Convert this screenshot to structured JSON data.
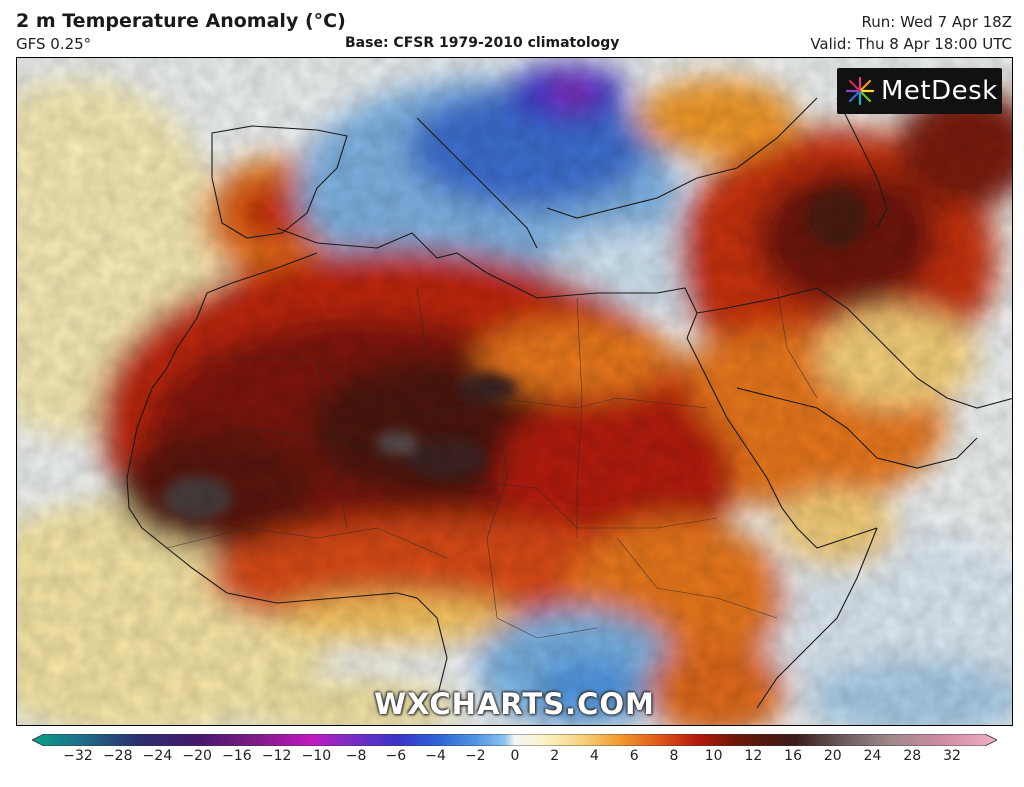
{
  "header": {
    "title": "2 m Temperature Anomaly (°C)",
    "model": "GFS 0.25°",
    "base": "Base: CFSR 1979-2010 climatology",
    "run": "Run: Wed 7 Apr 18Z",
    "valid": "Valid: Thu 8 Apr 18:00 UTC"
  },
  "logo": {
    "text": "MetDesk"
  },
  "watermark": "WXCHARTS.COM",
  "colorbar": {
    "ticks": [
      "−32",
      "−28",
      "−24",
      "−20",
      "−16",
      "−12",
      "−10",
      "−8",
      "−6",
      "−4",
      "−2",
      "0",
      "2",
      "4",
      "6",
      "8",
      "10",
      "12",
      "16",
      "20",
      "24",
      "28",
      "32"
    ],
    "colors": [
      "#0a9f87",
      "#1f6f8a",
      "#2b2f6e",
      "#45196b",
      "#7d1a86",
      "#c119c0",
      "#7a2ec4",
      "#3a34c8",
      "#2d63d8",
      "#4f96e2",
      "#8ec4ef",
      "#e6f1f8",
      "#fbf3c8",
      "#f6d27c",
      "#f29a2c",
      "#e0571a",
      "#b41a0d",
      "#6d1709",
      "#3a1a1a",
      "#6a5a5a",
      "#a08a8a",
      "#cc8aa0",
      "#f0b0c8"
    ]
  }
}
